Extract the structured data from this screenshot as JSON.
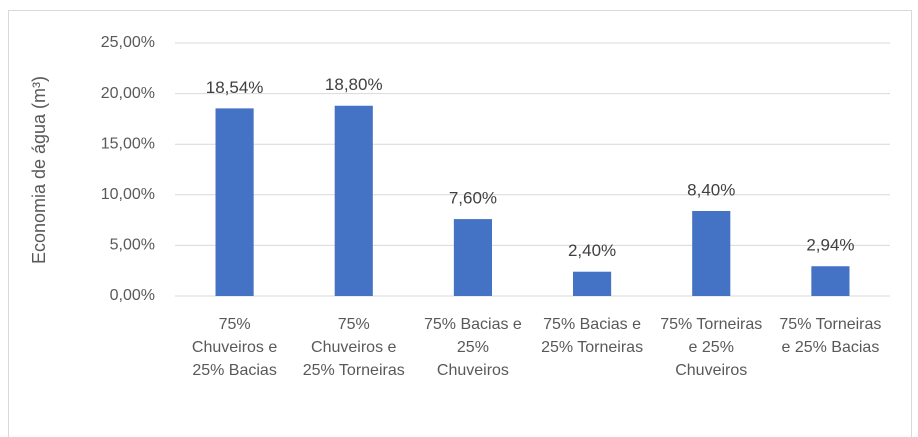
{
  "chart_data": {
    "type": "bar",
    "y_label": "Economia de água (m³)",
    "categories": [
      "75% Chuveiros e 25% Bacias",
      "75% Chuveiros e 25% Torneiras",
      "75% Bacias e 25% Chuveiros",
      "75% Bacias e 25% Torneiras",
      "75% Torneiras e 25% Chuveiros",
      "75% Torneiras e 25% Bacias"
    ],
    "values": [
      18.54,
      18.8,
      7.6,
      2.4,
      8.4,
      2.94
    ],
    "value_labels": [
      "18,54%",
      "18,80%",
      "7,60%",
      "2,40%",
      "8,40%",
      "2,94%"
    ],
    "color": "#4472c4",
    "ylim": [
      0,
      25
    ],
    "yticks": [
      {
        "value": 0,
        "label": "0,00%"
      },
      {
        "value": 5,
        "label": "5,00%"
      },
      {
        "value": 10,
        "label": "10,00%"
      },
      {
        "value": 15,
        "label": "15,00%"
      },
      {
        "value": 20,
        "label": "20,00%"
      },
      {
        "value": 25,
        "label": "25,00%"
      }
    ],
    "grid": true
  }
}
